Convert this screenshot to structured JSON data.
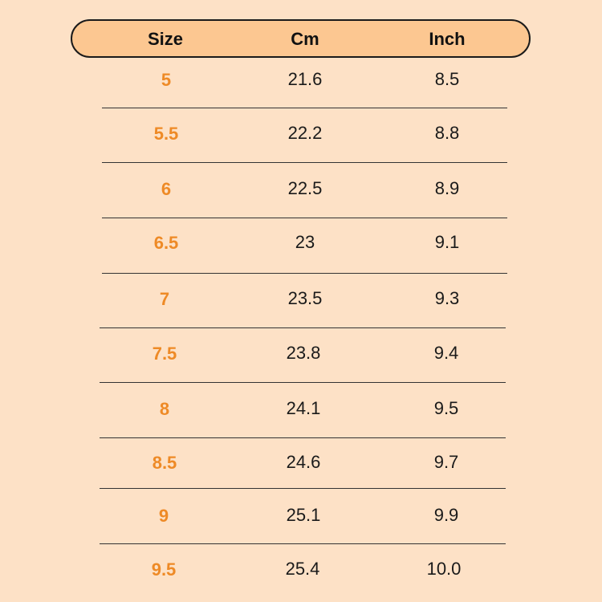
{
  "table": {
    "headers": [
      "Size",
      "Cm",
      "Inch"
    ],
    "rows": [
      [
        "5",
        "21.6",
        "8.5"
      ],
      [
        "5.5",
        "22.2",
        "8.8"
      ],
      [
        "6",
        "22.5",
        "8.9"
      ],
      [
        "6.5",
        "23",
        "9.1"
      ],
      [
        "7",
        "23.5",
        "9.3"
      ],
      [
        "7.5",
        "23.8",
        "9.4"
      ],
      [
        "8",
        "24.1",
        "9.5"
      ],
      [
        "8.5",
        "24.6",
        "9.7"
      ],
      [
        "9",
        "25.1",
        "9.9"
      ],
      [
        "9.5",
        "25.4",
        "10.0"
      ]
    ]
  },
  "colors": {
    "background": "#fde1c6",
    "header": "#fcc791",
    "size_text": "#ee8a26"
  }
}
